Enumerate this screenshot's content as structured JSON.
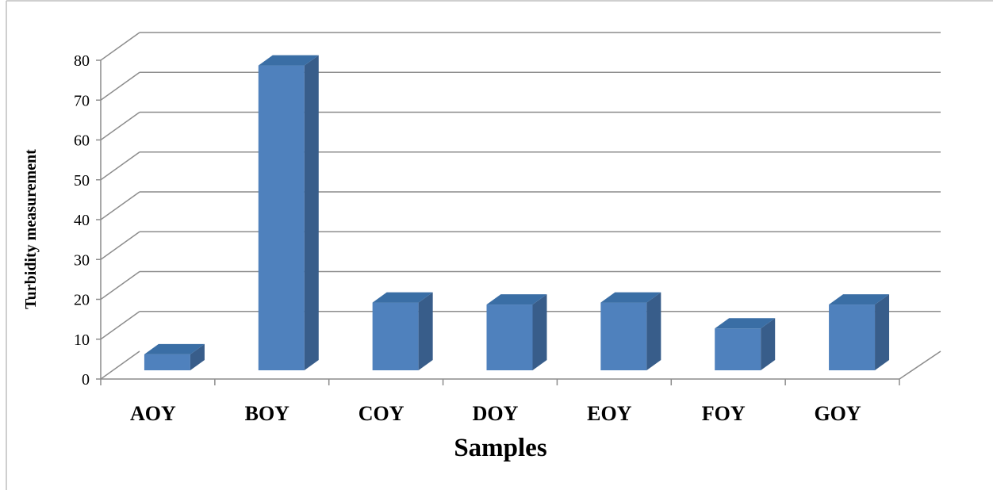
{
  "chart_data": {
    "type": "bar",
    "title": "",
    "xlabel": "Samples",
    "ylabel": "Turbidity measurement",
    "categories": [
      "AOY",
      "BOY",
      "COY",
      "DOY",
      "EOY",
      "FOY",
      "GOY"
    ],
    "values": [
      4,
      76.5,
      17,
      16.5,
      17,
      10.5,
      16.5
    ],
    "ylim": [
      0,
      80
    ],
    "y_ticks": [
      "0",
      "10",
      "20",
      "30",
      "40",
      "50",
      "60",
      "70",
      "80"
    ],
    "grid": true,
    "legend": "none",
    "three_d": true,
    "colors": {
      "bar_front": "#4f81bd",
      "bar_side": "#385d8a",
      "bar_top": "#3a6ea5",
      "grid": "#8c8c8c"
    }
  }
}
